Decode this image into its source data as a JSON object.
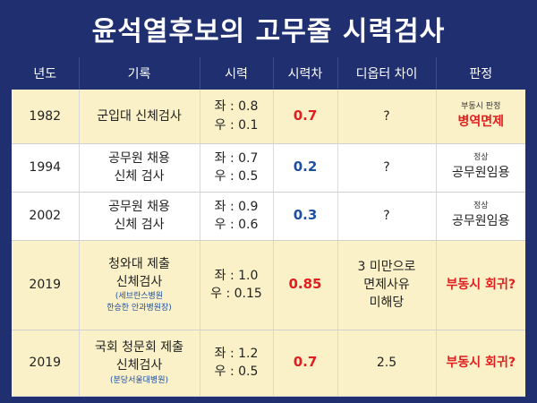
{
  "title": "윤석열후보의 고무줄 시력검사",
  "headers": [
    "년도",
    "기록",
    "시력",
    "시력차",
    "디옵터 차이",
    "판정"
  ],
  "rows": [
    {
      "year": "1982",
      "record": [
        "군입대 신체검사"
      ],
      "record_note": [],
      "vision": [
        "좌 : 0.8",
        "우 : 0.1"
      ],
      "diff": "0.7",
      "diopter": [
        "?"
      ],
      "verdict_small": "부동시 판정",
      "verdict_main": "병역면제"
    },
    {
      "year": "1994",
      "record": [
        "공무원 채용",
        "신체 검사"
      ],
      "record_note": [],
      "vision": [
        "좌 : 0.7",
        "우 : 0.5"
      ],
      "diff": "0.2",
      "diopter": [
        "?"
      ],
      "verdict_small": "정상",
      "verdict_main": "공무원임용"
    },
    {
      "year": "2002",
      "record": [
        "공무원 채용",
        "신체 검사"
      ],
      "record_note": [],
      "vision": [
        "좌 : 0.9",
        "우 : 0.6"
      ],
      "diff": "0.3",
      "diopter": [
        "?"
      ],
      "verdict_small": "정상",
      "verdict_main": "공무원임용"
    },
    {
      "year": "2019",
      "record": [
        "청와대 제출",
        "신체검사"
      ],
      "record_note": [
        "(세브란스병원",
        "한승한 안과병원장)"
      ],
      "vision": [
        "좌 : 1.0",
        "우 : 0.15"
      ],
      "diff": "0.85",
      "diopter": [
        "3 미만으로",
        "면제사유",
        "미해당"
      ],
      "verdict_small": "",
      "verdict_main": "부동시 회귀?"
    },
    {
      "year": "2019",
      "record": [
        "국회 청문회 제출",
        "신체검사"
      ],
      "record_note": [
        "(분당서울대병원)"
      ],
      "vision": [
        "좌 : 1.2",
        "우 : 0.5"
      ],
      "diff": "0.7",
      "diopter": [
        "2.5"
      ],
      "verdict_small": "",
      "verdict_main": "부동시 회귀?"
    }
  ],
  "colors": {
    "navy": "#1f2f6f",
    "highlight_row": "#fbf1c8",
    "red": "#e02020",
    "blue": "#1f4fa0"
  }
}
